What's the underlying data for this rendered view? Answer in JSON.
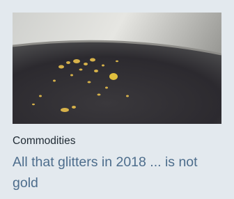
{
  "card": {
    "category": "Commodities",
    "headline": "All that glitters in 2018 ... is not gold"
  }
}
